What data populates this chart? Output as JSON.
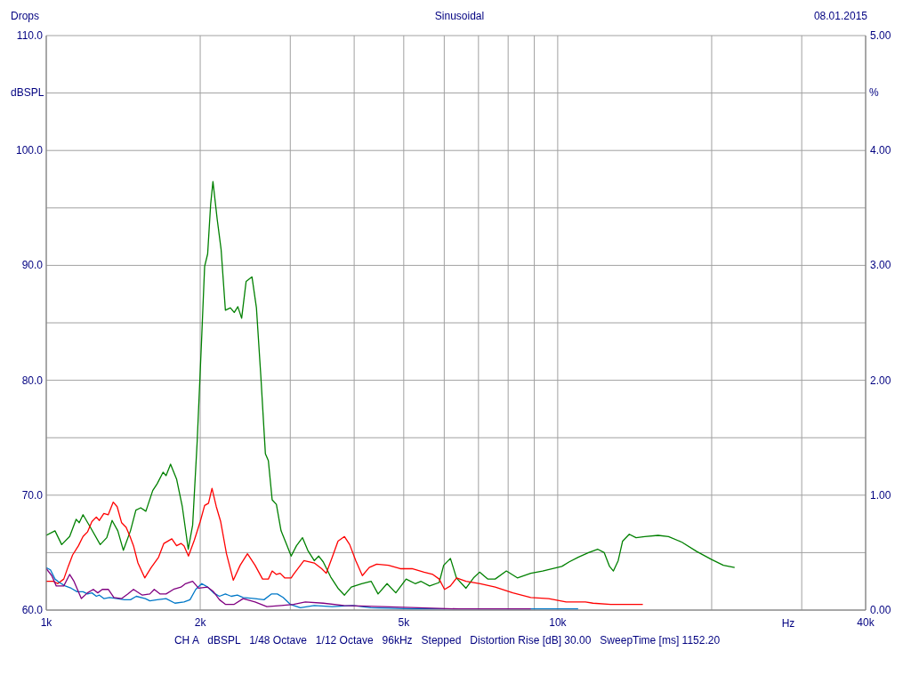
{
  "chart_data": {
    "type": "line",
    "title": "Drops",
    "subtitle": "Sinusoidal",
    "annotations": [
      "08.01.2015",
      "CH A   dBSPL   1/48 Octave   1/12 Octave   96kHz   Stepped   Distortion Rise [dB] 30.00   SweepTime [ms] 1152.20"
    ],
    "xlabel": "Hz",
    "ylabel": "dBSPL",
    "y2label": "%",
    "log": "x",
    "grid": true,
    "xlim": [
      1000,
      40000
    ],
    "xticks": [
      {
        "value": 1000,
        "label": "1k"
      },
      {
        "value": 2000,
        "label": "2k"
      },
      {
        "value": 3000,
        "label": null
      },
      {
        "value": 4000,
        "label": null
      },
      {
        "value": 5000,
        "label": "5k"
      },
      {
        "value": 6000,
        "label": null
      },
      {
        "value": 7000,
        "label": null
      },
      {
        "value": 8000,
        "label": null
      },
      {
        "value": 9000,
        "label": null
      },
      {
        "value": 10000,
        "label": "10k"
      },
      {
        "value": 20000,
        "label": null
      },
      {
        "value": 30000,
        "label": null
      },
      {
        "value": 40000,
        "label": "40k"
      }
    ],
    "ylim": [
      60,
      110
    ],
    "yticks": [
      {
        "value": 60,
        "label": "60.0"
      },
      {
        "value": 65,
        "label": null
      },
      {
        "value": 70,
        "label": "70.0"
      },
      {
        "value": 75,
        "label": null
      },
      {
        "value": 80,
        "label": "80.0"
      },
      {
        "value": 85,
        "label": null
      },
      {
        "value": 90,
        "label": "90.0"
      },
      {
        "value": 95,
        "label": null
      },
      {
        "value": 100,
        "label": "100.0"
      },
      {
        "value": 105,
        "label": null
      },
      {
        "value": 110,
        "label": "110.0"
      }
    ],
    "y2lim": [
      0,
      5
    ],
    "y2ticks": [
      {
        "value": 0,
        "label": "0.00"
      },
      {
        "value": 1,
        "label": "1.00"
      },
      {
        "value": 2,
        "label": "2.00"
      },
      {
        "value": 3,
        "label": "3.00"
      },
      {
        "value": 4,
        "label": "4.00"
      },
      {
        "value": 5,
        "label": "5.00"
      }
    ],
    "series": [
      {
        "color": "#008000",
        "x": [
          1000,
          1040,
          1072,
          1111,
          1144,
          1160,
          1180,
          1220,
          1275,
          1313,
          1345,
          1380,
          1415,
          1461,
          1497,
          1530,
          1566,
          1615,
          1648,
          1692,
          1715,
          1750,
          1798,
          1845,
          1895,
          1933,
          1973,
          2014,
          2040,
          2068,
          2096,
          2118,
          2159,
          2197,
          2240,
          2291,
          2331,
          2369,
          2410,
          2459,
          2525,
          2576,
          2628,
          2682,
          2718,
          2765,
          2818,
          2878,
          2945,
          3012,
          3085,
          3169,
          3246,
          3342,
          3410,
          3479,
          3597,
          3719,
          3829,
          3948,
          4137,
          4319,
          4454,
          4638,
          4825,
          5054,
          5264,
          5406,
          5617,
          5865,
          5985,
          6169,
          6339,
          6617,
          6846,
          7034,
          7296,
          7546,
          7937,
          8340,
          8857,
          9341,
          10190,
          10534,
          10964,
          11491,
          11968,
          12330,
          12630,
          12850,
          13130,
          13394,
          13800,
          14230,
          14800,
          15720,
          16470,
          17500,
          18700,
          19990,
          21080,
          22180
        ],
        "values": [
          66.5,
          66.9,
          65.7,
          66.4,
          67.9,
          67.6,
          68.3,
          67.2,
          65.7,
          66.3,
          67.8,
          66.9,
          65.2,
          66.9,
          68.7,
          68.9,
          68.6,
          70.4,
          71.0,
          72.0,
          71.7,
          72.7,
          71.4,
          69.0,
          65.3,
          67.4,
          74.7,
          83.9,
          89.9,
          91.0,
          95.3,
          97.3,
          94.0,
          91.4,
          86.1,
          86.3,
          85.9,
          86.4,
          85.4,
          88.6,
          89.0,
          86.3,
          80.3,
          73.6,
          73.0,
          69.6,
          69.2,
          66.9,
          65.8,
          64.7,
          65.6,
          66.3,
          65.2,
          64.3,
          64.7,
          64.2,
          62.9,
          61.9,
          61.3,
          62.0,
          62.3,
          62.5,
          61.4,
          62.3,
          61.5,
          62.7,
          62.3,
          62.5,
          62.1,
          62.4,
          63.9,
          64.5,
          62.8,
          61.9,
          62.8,
          63.3,
          62.7,
          62.7,
          63.4,
          62.8,
          63.2,
          63.4,
          63.8,
          64.2,
          64.6,
          65.0,
          65.3,
          65.0,
          63.8,
          63.4,
          64.3,
          66.0,
          66.6,
          66.3,
          66.4,
          66.5,
          66.4,
          65.9,
          65.1,
          64.4,
          63.9,
          63.7
        ]
      },
      {
        "color": "#ff0000",
        "x": [
          1000,
          1032,
          1053,
          1082,
          1104,
          1126,
          1156,
          1180,
          1204,
          1228,
          1253,
          1270,
          1296,
          1322,
          1352,
          1376,
          1404,
          1433,
          1458,
          1481,
          1511,
          1558,
          1604,
          1658,
          1698,
          1760,
          1798,
          1834,
          1859,
          1897,
          1948,
          2000,
          2040,
          2076,
          2109,
          2150,
          2193,
          2251,
          2321,
          2394,
          2474,
          2560,
          2648,
          2718,
          2765,
          2818,
          2866,
          2925,
          3012,
          3044,
          3190,
          3342,
          3456,
          3527,
          3624,
          3719,
          3829,
          3920,
          4029,
          4150,
          4280,
          4426,
          4667,
          4922,
          5190,
          5478,
          5700,
          5865,
          6008,
          6169,
          6344,
          6617,
          7058,
          7546,
          8170,
          8857,
          9600,
          10390,
          11330,
          11720,
          12690,
          13530,
          14670
        ],
        "values": [
          62.5,
          62.5,
          62.3,
          62.7,
          63.8,
          64.8,
          65.6,
          66.4,
          66.8,
          67.7,
          68.1,
          67.8,
          68.4,
          68.3,
          69.4,
          69.0,
          67.6,
          67.2,
          66.4,
          65.6,
          64.1,
          62.8,
          63.7,
          64.6,
          65.8,
          66.2,
          65.6,
          65.8,
          65.6,
          64.7,
          66.1,
          67.7,
          69.1,
          69.3,
          70.6,
          69.0,
          67.7,
          64.9,
          62.6,
          63.9,
          64.9,
          63.9,
          62.7,
          62.7,
          63.4,
          63.1,
          63.2,
          62.8,
          62.8,
          63.1,
          64.3,
          64.1,
          63.6,
          63.2,
          64.6,
          66.0,
          66.4,
          65.7,
          64.3,
          63.0,
          63.7,
          64.0,
          63.9,
          63.6,
          63.6,
          63.3,
          63.1,
          62.7,
          61.8,
          62.1,
          62.8,
          62.5,
          62.3,
          62.0,
          61.5,
          61.1,
          61.0,
          60.7,
          60.7,
          60.6,
          60.5,
          60.5,
          60.5
        ]
      },
      {
        "color": "#0078c8",
        "x": [
          1000,
          1019,
          1040,
          1061,
          1089,
          1119,
          1149,
          1180,
          1204,
          1228,
          1253,
          1270,
          1296,
          1330,
          1376,
          1422,
          1461,
          1500,
          1562,
          1594,
          1648,
          1715,
          1785,
          1859,
          1910,
          1960,
          2014,
          2068,
          2123,
          2181,
          2240,
          2300,
          2364,
          2426,
          2560,
          2665,
          2755,
          2830,
          2904,
          3000,
          3140,
          3342,
          3624,
          3975,
          4312,
          5190,
          5945,
          6781,
          8857,
          10964
        ],
        "values": [
          63.7,
          63.5,
          62.7,
          62.4,
          62.1,
          61.9,
          61.6,
          61.6,
          61.4,
          61.5,
          61.2,
          61.3,
          61.0,
          61.1,
          61.0,
          60.9,
          60.9,
          61.2,
          61.0,
          60.8,
          60.9,
          61.0,
          60.6,
          60.7,
          60.9,
          61.8,
          62.3,
          62.0,
          61.5,
          61.2,
          61.4,
          61.2,
          61.3,
          61.1,
          61.0,
          60.9,
          61.4,
          61.4,
          61.1,
          60.5,
          60.2,
          60.4,
          60.3,
          60.4,
          60.2,
          60.1,
          60.1,
          60.1,
          60.1,
          60.1
        ]
      },
      {
        "color": "#800080",
        "x": [
          1000,
          1025,
          1046,
          1082,
          1111,
          1133,
          1171,
          1204,
          1236,
          1261,
          1287,
          1322,
          1356,
          1404,
          1443,
          1481,
          1541,
          1594,
          1626,
          1670,
          1715,
          1773,
          1834,
          1872,
          1933,
          1985,
          2068,
          2123,
          2181,
          2240,
          2331,
          2426,
          2560,
          2700,
          2880,
          3044,
          3210,
          3479,
          3820,
          4544,
          5333,
          6420,
          7346,
          8857
        ],
        "values": [
          63.6,
          63.0,
          62.1,
          62.1,
          63.1,
          62.5,
          61.0,
          61.5,
          61.8,
          61.5,
          61.8,
          61.8,
          61.1,
          61.0,
          61.4,
          61.8,
          61.3,
          61.4,
          61.8,
          61.4,
          61.4,
          61.8,
          62.0,
          62.3,
          62.5,
          61.9,
          62.0,
          61.6,
          60.9,
          60.5,
          60.5,
          61.0,
          60.7,
          60.3,
          60.4,
          60.5,
          60.7,
          60.6,
          60.4,
          60.3,
          60.2,
          60.1,
          60.1,
          60.1
        ]
      }
    ]
  }
}
